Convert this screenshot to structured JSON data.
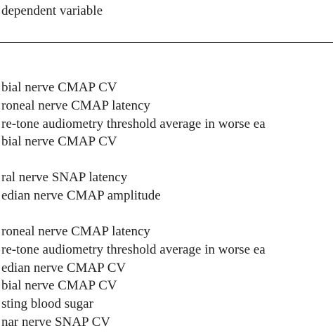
{
  "table": {
    "header": "dependent variable",
    "groups": [
      [
        "bial nerve CMAP CV",
        "roneal nerve CMAP latency",
        "re-tone audiometry threshold average in worse ea",
        "bial nerve CMAP CV"
      ],
      [
        "ral nerve SNAP latency",
        "edian nerve CMAP amplitude"
      ],
      [
        "roneal nerve CMAP latency",
        "re-tone audiometry threshold average in worse ea",
        "edian nerve CMAP CV",
        "bial nerve CMAP CV",
        "sting blood sugar",
        "nar nerve SNAP CV"
      ]
    ]
  }
}
